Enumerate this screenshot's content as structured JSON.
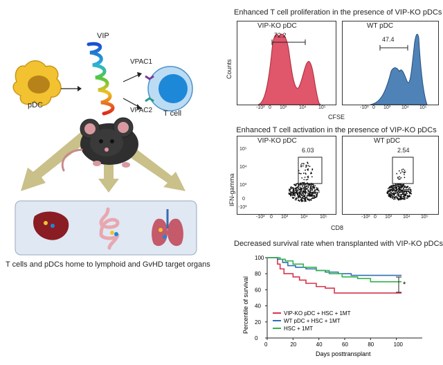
{
  "left": {
    "vip_label": "VIP",
    "vpac1_label": "VPAC1",
    "vpac2_label": "VPAC2",
    "pdc_label": "pDC",
    "tcell_label": "T cell",
    "caption": "T cells and pDCs home to lymphoid and GvHD target organs"
  },
  "colors": {
    "pdc_fill": "#f2c230",
    "tcell_fill": "#1e88d8",
    "arrow_fill": "#c9c08a",
    "organ_box": "#dfe8f3",
    "ko_red": "#d8344a",
    "wt_blue": "#2e6db4",
    "hsc_green": "#33b34a"
  },
  "chart_data": [
    {
      "type": "histogram",
      "title": "Enhanced T cell proliferation in the presence of VIP-KO pDCs",
      "xlabel": "CFSE",
      "ylabel": "Counts",
      "x_ticks": [
        "-10³",
        "0",
        "10³",
        "10⁴",
        "10⁵"
      ],
      "panels": [
        {
          "name": "VIP-KO pDC",
          "gate_value": "72.2",
          "color": "#e0566a"
        },
        {
          "name": "WT pDC",
          "gate_value": "47.4",
          "color": "#4f83b8"
        }
      ]
    },
    {
      "type": "scatter",
      "title": "Enhanced T cell activation in the presence of VIP-KO pDCs",
      "xlabel": "CD8",
      "ylabel": "IFN-gamma",
      "x_ticks": [
        "-10³",
        "0",
        "10³",
        "10⁴",
        "10⁵"
      ],
      "y_ticks": [
        "10⁵",
        "10⁴",
        "10³",
        "0",
        "-10³"
      ],
      "panels": [
        {
          "name": "VIP-KO pDC",
          "gate_value": "6.03"
        },
        {
          "name": "WT pDC",
          "gate_value": "2.54"
        }
      ]
    },
    {
      "type": "line",
      "title": "Decreased survival rate when transplanted with VIP-KO pDCs",
      "xlabel": "Days posttransplant",
      "ylabel": "Percentile of survival",
      "xlim": [
        0,
        120
      ],
      "ylim": [
        0,
        100
      ],
      "x_ticks": [
        0,
        20,
        40,
        60,
        80,
        100
      ],
      "y_ticks": [
        0,
        20,
        40,
        60,
        80,
        100
      ],
      "significance": "*",
      "series": [
        {
          "name": "VIP-KO pDC + HSC + 1MT",
          "color": "#d8344a",
          "points": [
            [
              0,
              100
            ],
            [
              5,
              100
            ],
            [
              8,
              92
            ],
            [
              10,
              86
            ],
            [
              13,
              80
            ],
            [
              20,
              76
            ],
            [
              25,
              72
            ],
            [
              30,
              68
            ],
            [
              38,
              64
            ],
            [
              45,
              62
            ],
            [
              52,
              56
            ],
            [
              104,
              56
            ]
          ]
        },
        {
          "name": "WT pDC + HSC + 1MT",
          "color": "#2e6db4",
          "points": [
            [
              0,
              100
            ],
            [
              8,
              98
            ],
            [
              12,
              94
            ],
            [
              16,
              90
            ],
            [
              22,
              88
            ],
            [
              30,
              86
            ],
            [
              38,
              84
            ],
            [
              45,
              82
            ],
            [
              55,
              80
            ],
            [
              65,
              78
            ],
            [
              104,
              78
            ]
          ]
        },
        {
          "name": "HSC + 1MT",
          "color": "#33b34a",
          "points": [
            [
              0,
              100
            ],
            [
              10,
              98
            ],
            [
              14,
              96
            ],
            [
              20,
              92
            ],
            [
              28,
              88
            ],
            [
              38,
              84
            ],
            [
              48,
              80
            ],
            [
              58,
              76
            ],
            [
              70,
              74
            ],
            [
              80,
              70
            ],
            [
              104,
              70
            ]
          ]
        }
      ]
    }
  ]
}
